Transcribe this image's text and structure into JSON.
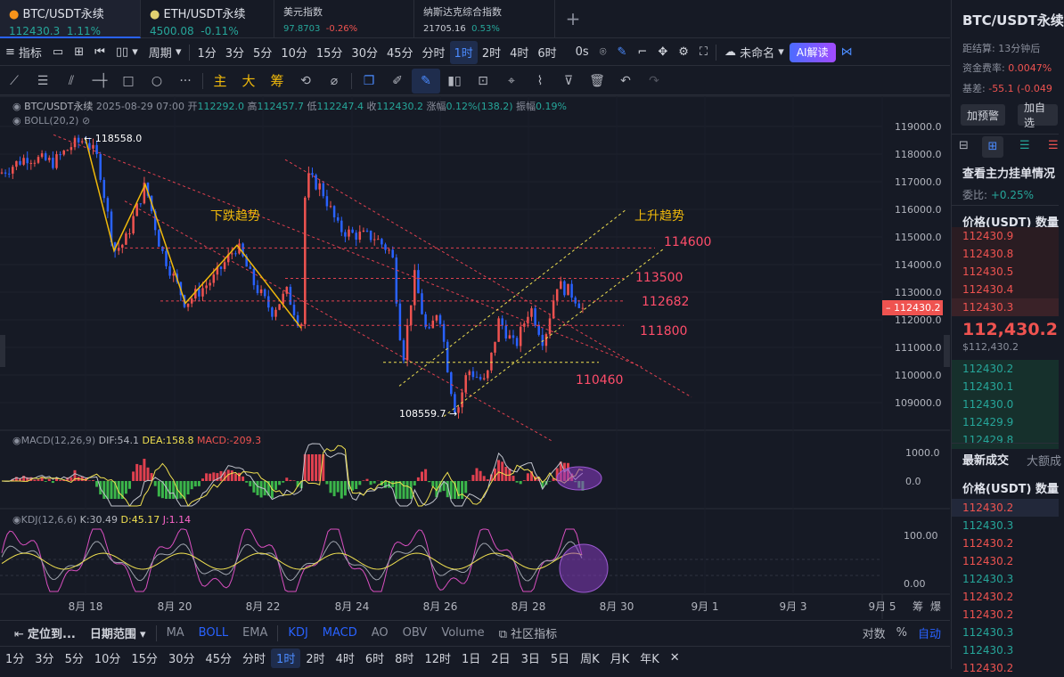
{
  "tickers": [
    {
      "name": "BTC/USDT永续",
      "price": "112430.3",
      "change": "1.11%",
      "dir": "up",
      "active": true
    },
    {
      "name": "ETH/USDT永续",
      "price": "4500.08",
      "change": "-0.11%",
      "dir": "dn",
      "active": false
    },
    {
      "name": "美元指数",
      "price": "97.8703",
      "change": "-0.26%",
      "dir": "dn",
      "active": false
    },
    {
      "name": "纳斯达克综合指数",
      "price": "21705.16",
      "change": "0.53%",
      "dir": "up",
      "active": false
    }
  ],
  "toolbar": {
    "indicators": "指标",
    "period": "周期",
    "timeframes": [
      "1分",
      "3分",
      "5分",
      "10分",
      "15分",
      "30分",
      "45分",
      "分时",
      "1时",
      "2时",
      "4时",
      "6时"
    ],
    "selected_tf": "1时",
    "os": "0s",
    "layout_name": "未命名",
    "ai": "AI解读"
  },
  "drawtools": {
    "cn": [
      "主",
      "大",
      "筹"
    ]
  },
  "legend": {
    "symbol": "BTC/USDT永续",
    "timestamp": "2025-08-29 07:00",
    "open_label": "开",
    "open": "112292.0",
    "high_label": "高",
    "high": "112457.7",
    "low_label": "低",
    "low": "112247.4",
    "close_label": "收",
    "close": "112430.2",
    "chg_label": "涨幅",
    "chg": "0.12%(138.2)",
    "amp_label": "振幅",
    "amp": "0.19%",
    "boll": "BOLL(20,2)"
  },
  "annotations": {
    "high_point": "118558.0",
    "low_point": "108559.7",
    "down_trend": "下跌趋势",
    "up_trend": "上升趋势",
    "levels": [
      "114600",
      "113500",
      "112682",
      "111800",
      "110460"
    ]
  },
  "yaxis": {
    "ticks": [
      "119000.0",
      "118000.0",
      "117000.0",
      "116000.0",
      "115000.0",
      "114000.0",
      "113000.0",
      "112000.0",
      "111000.0",
      "110000.0",
      "109000.0"
    ],
    "current": "112430.2"
  },
  "xaxis": {
    "ticks": [
      "8月 18",
      "8月 20",
      "8月 22",
      "8月 24",
      "8月 26",
      "8月 28",
      "8月 30",
      "9月 1",
      "9月 3",
      "9月 5"
    ],
    "icons": [
      "筹",
      "爆"
    ]
  },
  "macd": {
    "label": "MACD(12,26,9)",
    "dif": "DIF:54.1",
    "dea": "DEA:158.8",
    "macd": "MACD:-209.3",
    "ticks": [
      "1000.0",
      "0.0"
    ]
  },
  "kdj": {
    "label": "KDJ(12,6,6)",
    "k": "K:30.49",
    "d": "D:45.17",
    "j": "J:1.14",
    "ticks": [
      "100.00",
      "0.00"
    ]
  },
  "bottom1": {
    "locate": "定位到...",
    "range": "日期范围",
    "inds": [
      "MA",
      "BOLL",
      "EMA",
      "KDJ",
      "MACD",
      "AO",
      "OBV",
      "Volume"
    ],
    "community": "社区指标",
    "log": "对数",
    "pct": "%",
    "auto": "自动"
  },
  "bottom2": {
    "tfs": [
      "1分",
      "3分",
      "5分",
      "10分",
      "15分",
      "30分",
      "45分",
      "分时",
      "1时",
      "2时",
      "4时",
      "6时",
      "8时",
      "12时",
      "1日",
      "2日",
      "3日",
      "5日",
      "周K",
      "月K",
      "年K"
    ],
    "selected": "1时"
  },
  "right": {
    "title": "BTC/USDT永续",
    "settle_label": "距结算:",
    "settle": "13分钟后",
    "funding_label": "资金费率:",
    "funding": "0.0047%",
    "basis_label": "基差:",
    "basis": "-55.1 (-0.049",
    "alert": "加预警",
    "watch": "加自选",
    "depth_title": "查看主力挂单情况",
    "ratio_label": "委比:",
    "ratio": "+0.25%",
    "book_header": "价格(USDT)  数量",
    "asks": [
      "112430.9",
      "112430.8",
      "112430.5",
      "112430.4",
      "112430.3"
    ],
    "last": "112,430.2",
    "last_sub": "$112,430.2",
    "bids": [
      "112430.2",
      "112430.1",
      "112430.0",
      "112429.9",
      "112429.8"
    ],
    "trades_tab": "最新成交",
    "big_tab": "大额成",
    "trades_header": "价格(USDT)  数量",
    "trades": [
      {
        "p": "112430.2",
        "d": "dn"
      },
      {
        "p": "112430.3",
        "d": "up"
      },
      {
        "p": "112430.2",
        "d": "dn"
      },
      {
        "p": "112430.2",
        "d": "dn"
      },
      {
        "p": "112430.3",
        "d": "up"
      },
      {
        "p": "112430.2",
        "d": "dn"
      },
      {
        "p": "112430.2",
        "d": "dn"
      },
      {
        "p": "112430.3",
        "d": "up"
      },
      {
        "p": "112430.3",
        "d": "up"
      },
      {
        "p": "112430.2",
        "d": "dn"
      }
    ]
  },
  "colors": {
    "up": "#26a69a",
    "down": "#ef5350",
    "accent": "#2962ff",
    "annot": "#f0b90b",
    "level": "#ff4d6a"
  }
}
